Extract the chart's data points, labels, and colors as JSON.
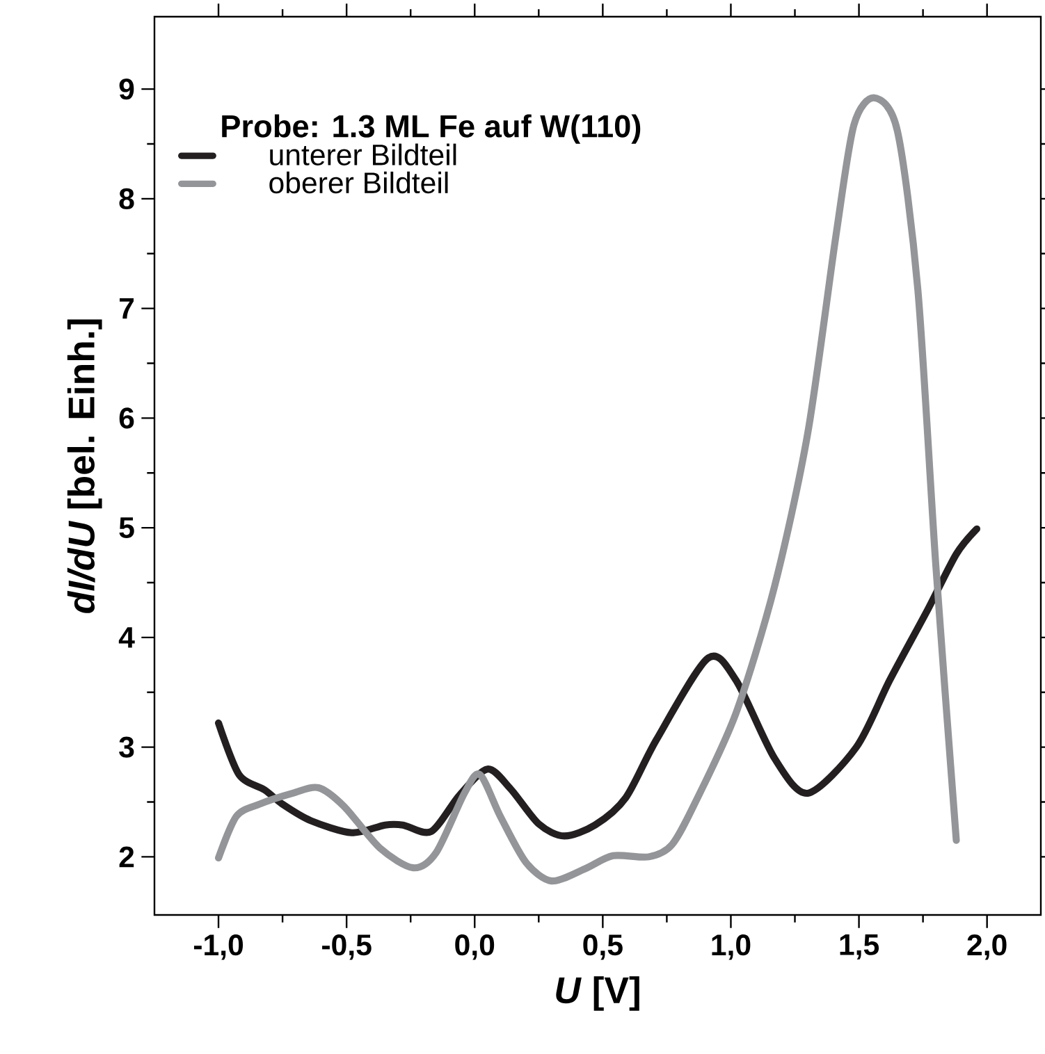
{
  "chart_data": {
    "type": "line",
    "xlabel": "*U* [V]",
    "ylabel": "*dI/dU* [bel. Einh.]",
    "legend_title": "Probe: 1.3 ML Fe auf W(110)",
    "legend": "top left",
    "grid": false,
    "marker": "none",
    "line_style": "solid",
    "xlim": [
      -1.25,
      2.21
    ],
    "ylim": [
      1.47,
      9.66
    ],
    "xticks": [
      {
        "value": -1.0,
        "label": "-1,0"
      },
      {
        "value": -0.5,
        "label": "-0,5"
      },
      {
        "value": 0.0,
        "label": "0,0"
      },
      {
        "value": 0.5,
        "label": "0,5"
      },
      {
        "value": 1.0,
        "label": "1,0"
      },
      {
        "value": 1.5,
        "label": "1,5"
      },
      {
        "value": 2.0,
        "label": "2,0"
      }
    ],
    "yticks": [
      2,
      3,
      4,
      5,
      6,
      7,
      8,
      9
    ],
    "series": [
      {
        "name": "unterer Bildteil",
        "color": "#231f20",
        "x": [
          -1.0,
          -0.92,
          -0.82,
          -0.75,
          -0.64,
          -0.48,
          -0.35,
          -0.28,
          -0.17,
          -0.06,
          0.05,
          0.14,
          0.25,
          0.35,
          0.47,
          0.59,
          0.71,
          0.91,
          1.02,
          1.17,
          1.3,
          1.49,
          1.62,
          1.77,
          1.88,
          1.96
        ],
        "values": [
          3.22,
          2.75,
          2.61,
          2.48,
          2.33,
          2.22,
          2.29,
          2.29,
          2.23,
          2.56,
          2.8,
          2.62,
          2.3,
          2.19,
          2.29,
          2.54,
          3.07,
          3.81,
          3.61,
          2.9,
          2.58,
          3.0,
          3.61,
          4.26,
          4.76,
          4.99
        ]
      },
      {
        "name": "oberer Bildteil",
        "color": "#939598",
        "x": [
          -1.0,
          -0.93,
          -0.84,
          -0.71,
          -0.61,
          -0.51,
          -0.37,
          -0.24,
          -0.15,
          -0.04,
          0.02,
          0.1,
          0.2,
          0.3,
          0.43,
          0.54,
          0.68,
          0.77,
          0.86,
          1.02,
          1.17,
          1.3,
          1.41,
          1.48,
          1.56,
          1.65,
          1.73,
          1.8,
          1.88
        ],
        "values": [
          1.99,
          2.37,
          2.48,
          2.58,
          2.63,
          2.46,
          2.08,
          1.9,
          2.04,
          2.58,
          2.75,
          2.37,
          1.95,
          1.78,
          1.89,
          2.01,
          2.0,
          2.11,
          2.49,
          3.31,
          4.46,
          5.86,
          7.66,
          8.67,
          8.92,
          8.62,
          7.17,
          4.66,
          2.15
        ]
      }
    ]
  }
}
